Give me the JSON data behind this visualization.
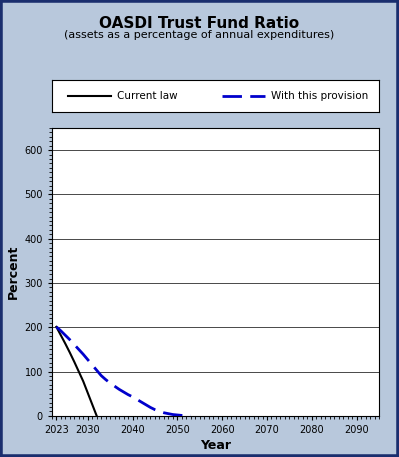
{
  "title": "OASDI Trust Fund Ratio",
  "subtitle": "(assets as a percentage of annual expenditures)",
  "xlabel": "Year",
  "ylabel": "Percent",
  "background_color": "#b8c8dc",
  "plot_bg_color": "#ffffff",
  "border_color": "#1a2e6e",
  "xlim": [
    2022,
    2095
  ],
  "ylim": [
    0,
    650
  ],
  "yticks": [
    0,
    100,
    200,
    300,
    400,
    500,
    600
  ],
  "xticks": [
    2023,
    2030,
    2040,
    2050,
    2060,
    2070,
    2080,
    2090
  ],
  "current_law_x": [
    2023,
    2024,
    2025,
    2026,
    2027,
    2028,
    2029,
    2030,
    2031,
    2032
  ],
  "current_law_y": [
    201,
    182,
    163,
    143,
    122,
    100,
    78,
    52,
    26,
    0
  ],
  "provision_x": [
    2023,
    2024,
    2025,
    2026,
    2027,
    2028,
    2029,
    2030,
    2031,
    2032,
    2033,
    2034,
    2035,
    2036,
    2037,
    2038,
    2039,
    2040,
    2041,
    2042,
    2043,
    2044,
    2045,
    2046,
    2047,
    2048,
    2049,
    2050,
    2051,
    2052,
    2053
  ],
  "provision_y": [
    201,
    192,
    182,
    172,
    161,
    150,
    139,
    127,
    115,
    103,
    91,
    82,
    74,
    67,
    60,
    54,
    48,
    43,
    37,
    31,
    25,
    19,
    14,
    10,
    7,
    5,
    3,
    2,
    1,
    0.5,
    0
  ],
  "current_law_color": "#000000",
  "provision_color": "#0000cc",
  "legend_current_law": "Current law",
  "legend_provision": "With this provision"
}
